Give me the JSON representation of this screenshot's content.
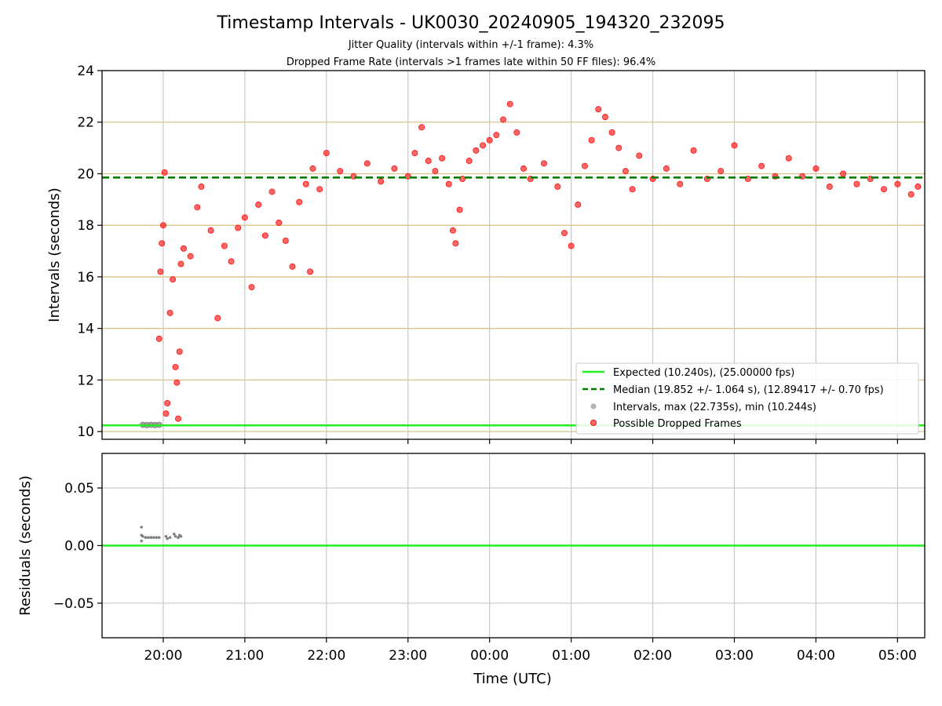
{
  "figure": {
    "title": "Timestamp Intervals - UK0030_20240905_194320_232095",
    "subtitle1": "Jitter Quality (intervals within +/-1 frame): 4.3%",
    "subtitle2": "Dropped Frame Rate (intervals >1 frames late within 50 FF files): 96.4%"
  },
  "chart_data": [
    {
      "type": "scatter",
      "panel": "intervals",
      "title": "Timestamp Intervals - UK0030_20240905_194320_232095",
      "xlabel": "",
      "ylabel": "Intervals (seconds)",
      "xlim": [
        "19:15",
        "05:20"
      ],
      "ylim": [
        9.7,
        24
      ],
      "x_ticks": [
        "20:00",
        "21:00",
        "22:00",
        "23:00",
        "00:00",
        "01:00",
        "02:00",
        "03:00",
        "04:00",
        "05:00"
      ],
      "y_ticks": [
        10,
        12,
        14,
        16,
        18,
        20,
        22,
        24
      ],
      "grid": true,
      "expected_interval": 10.24,
      "median_interval": 19.852,
      "legend_position": "lower-right",
      "legend": [
        "Expected (10.240s), (25.00000 fps)",
        "Median (19.852 +/- 1.064 s), (12.89417 +/- 0.70 fps)",
        "Intervals, max (22.735s), min (10.244s)",
        "Possible Dropped Frames"
      ],
      "series": [
        {
          "name": "Intervals, max (22.735s), min (10.244s)",
          "color": "#808080",
          "points": [
            [
              "19:45",
              10.26
            ],
            [
              "19:48",
              10.25
            ],
            [
              "19:51",
              10.26
            ],
            [
              "19:54",
              10.25
            ],
            [
              "19:57",
              10.26
            ]
          ]
        },
        {
          "name": "Possible Dropped Frames",
          "color": "#ff0000",
          "points": [
            [
              "19:57",
              13.6
            ],
            [
              "19:58",
              16.2
            ],
            [
              "19:59",
              17.3
            ],
            [
              "20:00",
              18.0
            ],
            [
              "20:01",
              20.05
            ],
            [
              "20:02",
              10.7
            ],
            [
              "20:03",
              11.1
            ],
            [
              "20:05",
              14.6
            ],
            [
              "20:07",
              15.9
            ],
            [
              "20:09",
              12.5
            ],
            [
              "20:10",
              11.9
            ],
            [
              "20:11",
              10.5
            ],
            [
              "20:12",
              13.1
            ],
            [
              "20:13",
              16.5
            ],
            [
              "20:15",
              17.1
            ],
            [
              "20:20",
              16.8
            ],
            [
              "20:25",
              18.7
            ],
            [
              "20:28",
              19.5
            ],
            [
              "20:35",
              17.8
            ],
            [
              "20:40",
              14.4
            ],
            [
              "20:45",
              17.2
            ],
            [
              "20:50",
              16.6
            ],
            [
              "20:55",
              17.9
            ],
            [
              "21:00",
              18.3
            ],
            [
              "21:05",
              15.6
            ],
            [
              "21:10",
              18.8
            ],
            [
              "21:15",
              17.6
            ],
            [
              "21:20",
              19.3
            ],
            [
              "21:25",
              18.1
            ],
            [
              "21:30",
              17.4
            ],
            [
              "21:35",
              16.4
            ],
            [
              "21:40",
              18.9
            ],
            [
              "21:45",
              19.6
            ],
            [
              "21:48",
              16.2
            ],
            [
              "21:50",
              20.2
            ],
            [
              "21:55",
              19.4
            ],
            [
              "22:00",
              20.8
            ],
            [
              "22:10",
              20.1
            ],
            [
              "22:20",
              19.9
            ],
            [
              "22:30",
              20.4
            ],
            [
              "22:40",
              19.7
            ],
            [
              "22:50",
              20.2
            ],
            [
              "23:00",
              19.9
            ],
            [
              "23:05",
              20.8
            ],
            [
              "23:10",
              21.8
            ],
            [
              "23:15",
              20.5
            ],
            [
              "23:20",
              20.1
            ],
            [
              "23:25",
              20.6
            ],
            [
              "23:30",
              19.6
            ],
            [
              "23:33",
              17.8
            ],
            [
              "23:35",
              17.3
            ],
            [
              "23:38",
              18.6
            ],
            [
              "23:40",
              19.8
            ],
            [
              "23:45",
              20.5
            ],
            [
              "23:50",
              20.9
            ],
            [
              "23:55",
              21.1
            ],
            [
              "00:00",
              21.3
            ],
            [
              "00:05",
              21.5
            ],
            [
              "00:10",
              22.1
            ],
            [
              "00:15",
              22.7
            ],
            [
              "00:20",
              21.6
            ],
            [
              "00:25",
              20.2
            ],
            [
              "00:30",
              19.8
            ],
            [
              "00:40",
              20.4
            ],
            [
              "00:50",
              19.5
            ],
            [
              "00:55",
              17.7
            ],
            [
              "01:00",
              17.2
            ],
            [
              "01:05",
              18.8
            ],
            [
              "01:10",
              20.3
            ],
            [
              "01:15",
              21.3
            ],
            [
              "01:20",
              22.5
            ],
            [
              "01:25",
              22.2
            ],
            [
              "01:30",
              21.6
            ],
            [
              "01:35",
              21.0
            ],
            [
              "01:40",
              20.1
            ],
            [
              "01:45",
              19.4
            ],
            [
              "01:50",
              20.7
            ],
            [
              "02:00",
              19.8
            ],
            [
              "02:10",
              20.2
            ],
            [
              "02:20",
              19.6
            ],
            [
              "02:30",
              20.9
            ],
            [
              "02:40",
              19.8
            ],
            [
              "02:50",
              20.1
            ],
            [
              "03:00",
              21.1
            ],
            [
              "03:10",
              19.8
            ],
            [
              "03:20",
              20.3
            ],
            [
              "03:30",
              19.9
            ],
            [
              "03:40",
              20.6
            ],
            [
              "03:50",
              19.9
            ],
            [
              "04:00",
              20.2
            ],
            [
              "04:10",
              19.5
            ],
            [
              "04:20",
              20.0
            ],
            [
              "04:30",
              19.6
            ],
            [
              "04:40",
              19.8
            ],
            [
              "04:50",
              19.4
            ],
            [
              "05:00",
              19.6
            ],
            [
              "05:10",
              19.2
            ],
            [
              "05:15",
              19.5
            ]
          ]
        }
      ]
    },
    {
      "type": "scatter",
      "panel": "residuals",
      "xlabel": "Time (UTC)",
      "ylabel": "Residuals (seconds)",
      "xlim": [
        "19:15",
        "05:20"
      ],
      "ylim": [
        -0.08,
        0.08
      ],
      "x_ticks": [
        "20:00",
        "21:00",
        "22:00",
        "23:00",
        "00:00",
        "01:00",
        "02:00",
        "03:00",
        "04:00",
        "05:00"
      ],
      "y_ticks": [
        0.05,
        0.0,
        -0.05
      ],
      "y_tick_labels": [
        "0.05",
        "0.00",
        "−0.05"
      ],
      "grid": true,
      "zero_line": 0.0,
      "series": [
        {
          "name": "Residuals",
          "color": "#808080",
          "points": [
            [
              "19:44",
              0.016
            ],
            [
              "19:44",
              0.009
            ],
            [
              "19:44",
              0.004
            ],
            [
              "19:45",
              0.008
            ],
            [
              "19:47",
              0.007
            ],
            [
              "19:49",
              0.007
            ],
            [
              "19:51",
              0.007
            ],
            [
              "19:53",
              0.007
            ],
            [
              "19:55",
              0.007
            ],
            [
              "19:57",
              0.007
            ],
            [
              "20:02",
              0.008
            ],
            [
              "20:03",
              0.006
            ],
            [
              "20:05",
              0.007
            ],
            [
              "20:08",
              0.01
            ],
            [
              "20:09",
              0.008
            ],
            [
              "20:11",
              0.007
            ],
            [
              "20:12",
              0.009
            ],
            [
              "20:13",
              0.008
            ]
          ]
        }
      ]
    }
  ]
}
